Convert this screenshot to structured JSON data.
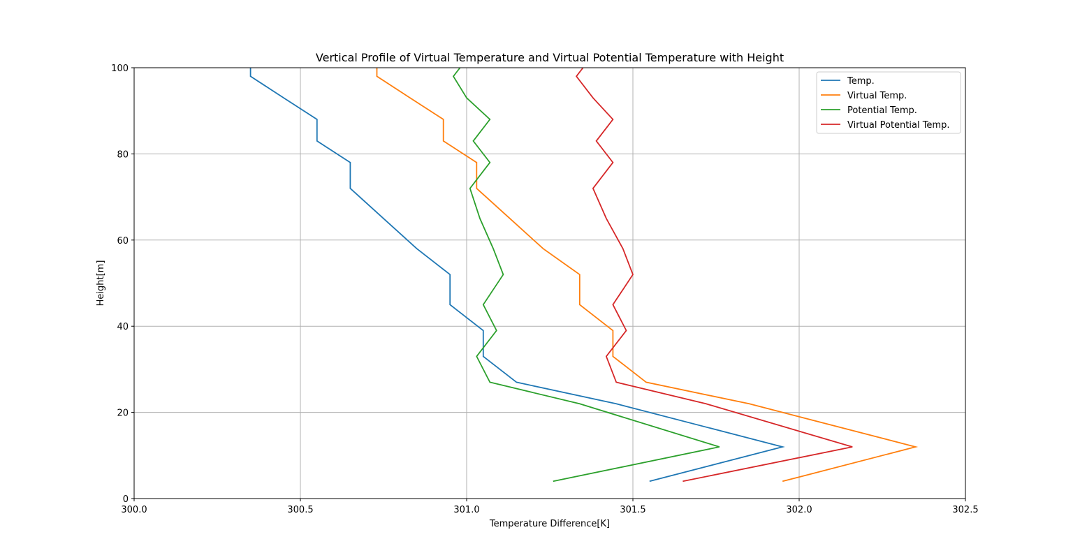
{
  "chart_data": {
    "type": "line",
    "title": "Vertical Profile of Virtual Temperature and Virtual Potential Temperature with Height",
    "xlabel": "Temperature Difference[K]",
    "ylabel": "Height[m]",
    "xlim": [
      300.0,
      302.5
    ],
    "ylim": [
      0,
      100
    ],
    "xticks": [
      "300.0",
      "300.5",
      "301.0",
      "301.5",
      "302.0",
      "302.5"
    ],
    "yticks": [
      "0",
      "20",
      "40",
      "60",
      "80",
      "100"
    ],
    "grid": true,
    "legend_position": "top-right",
    "height": [
      4,
      12,
      22,
      27,
      33,
      39,
      45,
      52,
      58,
      65,
      72,
      78,
      83,
      88,
      93,
      98,
      100
    ],
    "series": [
      {
        "name": "Temp.",
        "color": "#1f77b4",
        "values": [
          301.55,
          301.95,
          301.45,
          301.15,
          301.05,
          301.05,
          300.95,
          300.95,
          300.85,
          300.75,
          300.65,
          300.65,
          300.55,
          300.55,
          300.45,
          300.35,
          300.35
        ]
      },
      {
        "name": "Virtual Temp.",
        "color": "#ff7f0e",
        "values": [
          301.95,
          302.35,
          301.85,
          301.54,
          301.44,
          301.44,
          301.34,
          301.34,
          301.23,
          301.13,
          301.03,
          301.03,
          300.93,
          300.93,
          300.83,
          300.73,
          300.73
        ]
      },
      {
        "name": "Potential Temp.",
        "color": "#2ca02c",
        "values": [
          301.26,
          301.76,
          301.34,
          301.07,
          301.03,
          301.09,
          301.05,
          301.11,
          301.08,
          301.04,
          301.01,
          301.07,
          301.02,
          301.07,
          301.0,
          300.96,
          300.98
        ]
      },
      {
        "name": "Virtual Potential Temp.",
        "color": "#d62728",
        "values": [
          301.65,
          302.16,
          301.72,
          301.45,
          301.42,
          301.48,
          301.44,
          301.5,
          301.47,
          301.42,
          301.38,
          301.44,
          301.39,
          301.44,
          301.38,
          301.33,
          301.35
        ]
      }
    ]
  }
}
